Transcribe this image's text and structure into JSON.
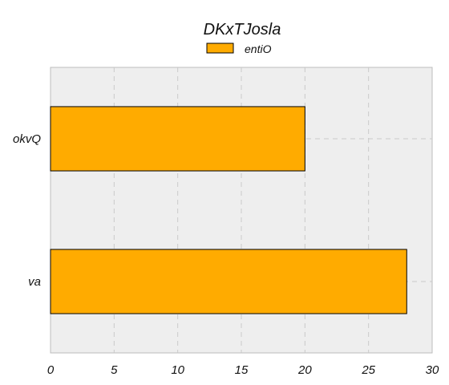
{
  "chart_data": {
    "type": "bar",
    "orientation": "horizontal",
    "title": "DKxTJosla",
    "xlabel": "",
    "ylabel": "",
    "categories": [
      "okvQ",
      "va"
    ],
    "series": [
      {
        "name": "entiO",
        "values": [
          20,
          28
        ]
      }
    ],
    "xlim": [
      0,
      30
    ],
    "x_ticks": [
      0,
      5,
      10,
      15,
      20,
      25,
      30
    ],
    "grid": true,
    "legend_position": "top-center",
    "colors": {
      "bar": "#ffab00",
      "background": "#eeeeee",
      "edge": "#000000"
    }
  }
}
